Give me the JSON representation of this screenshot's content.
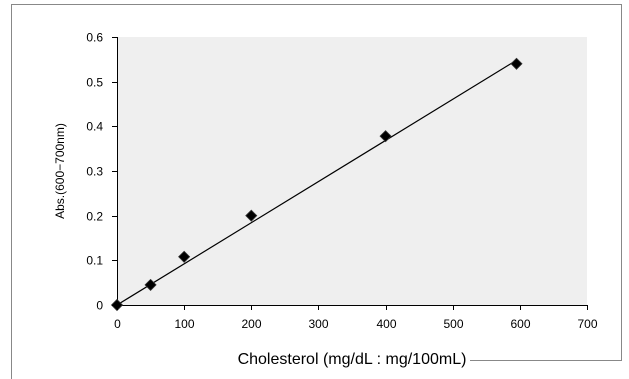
{
  "chart_data": {
    "type": "scatter",
    "title": "",
    "xlabel": "Cholesterol (mg/dL : mg/100mL)",
    "ylabel": "Abs.(600−700nm)",
    "xlim": [
      0,
      700
    ],
    "ylim": [
      0,
      0.6
    ],
    "x_ticks": [
      "0",
      "100",
      "200",
      "300",
      "400",
      "500",
      "600",
      "700"
    ],
    "y_ticks": [
      "0",
      "0.1",
      "0.2",
      "0.3",
      "0.4",
      "0.5",
      "0.6"
    ],
    "grid": false,
    "legend": "none",
    "series": [
      {
        "marker": "diamond",
        "color": "#000000",
        "points": [
          {
            "x": 0,
            "y": 0.0
          },
          {
            "x": 50,
            "y": 0.045
          },
          {
            "x": 100,
            "y": 0.108
          },
          {
            "x": 200,
            "y": 0.2
          },
          {
            "x": 400,
            "y": 0.378
          },
          {
            "x": 595,
            "y": 0.54
          }
        ]
      }
    ],
    "trendline": {
      "type": "linear",
      "from": {
        "x": 0,
        "y": 0.0
      },
      "to": {
        "x": 595,
        "y": 0.548
      },
      "color": "#000000"
    },
    "plot_background": "#efefef",
    "frame_color": "#888888"
  }
}
